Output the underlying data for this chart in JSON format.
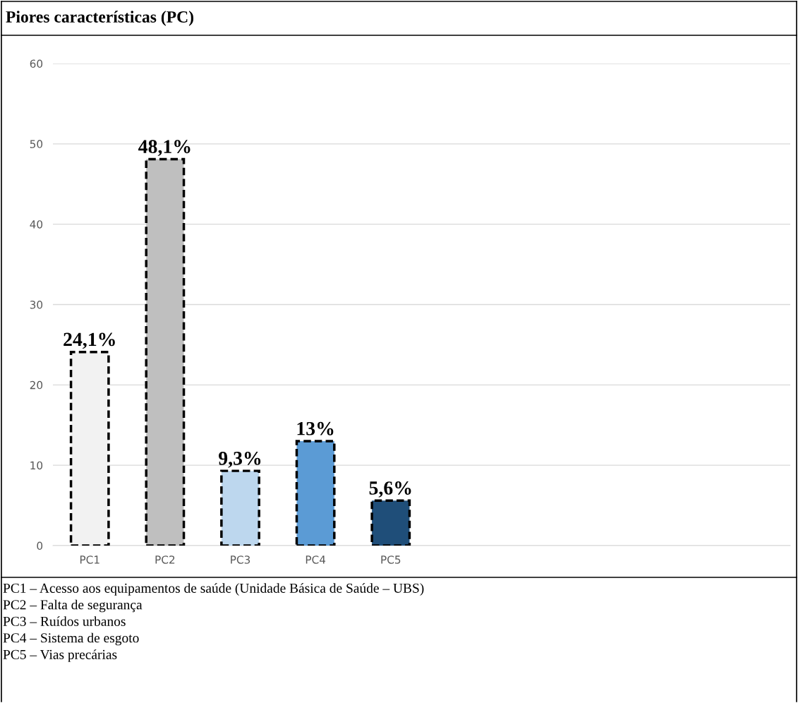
{
  "chart_data": {
    "type": "bar",
    "title": "Piores características (PC)",
    "categories": [
      "PC1",
      "PC2",
      "PC3",
      "PC4",
      "PC5"
    ],
    "values": [
      24.1,
      48.1,
      9.3,
      13,
      5.6
    ],
    "value_labels": [
      "24,1%",
      "48,1%",
      "9,3%",
      "13%",
      "5,6%"
    ],
    "colors": [
      "#f2f2f2",
      "#bfbfbf",
      "#bdd7ee",
      "#5b9bd5",
      "#1f4e79"
    ],
    "ylim": [
      0,
      60
    ],
    "yticks": [
      0,
      10,
      20,
      30,
      40,
      50,
      60
    ],
    "grid": "y",
    "line_style": "dashed",
    "annotations": [
      "PC1 – Acesso aos equipamentos de saúde (Unidade Básica de Saúde – UBS)",
      "PC2 – Falta de segurança",
      "PC3 – Ruídos urbanos",
      "PC4 – Sistema de esgoto",
      "PC5 – Vias precárias"
    ]
  }
}
